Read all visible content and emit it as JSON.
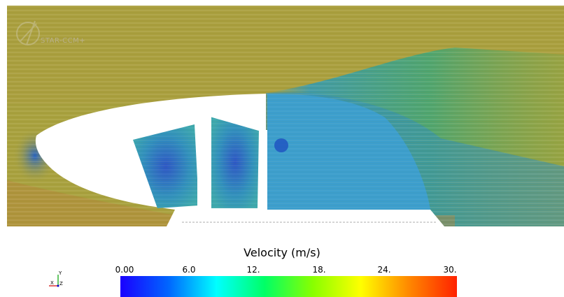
{
  "app": {
    "logo_text": "STAR-CCM+"
  },
  "scalar_bar": {
    "title": "Velocity (m/s)",
    "ticks": [
      "0.00",
      "6.0",
      "12.",
      "18.",
      "24.",
      "30."
    ],
    "range": [
      0,
      30
    ],
    "colormap": [
      "#1a00ff",
      "#0066ff",
      "#00ffff",
      "#00ff66",
      "#88ff00",
      "#ffff00",
      "#ff8800",
      "#ff2200"
    ]
  },
  "triad": {
    "axes": [
      "Y",
      "X",
      "Z"
    ]
  },
  "colors": {
    "freestream": "#a8a13e",
    "low_speed": "#2e8fb3",
    "body": "#ffffff"
  }
}
